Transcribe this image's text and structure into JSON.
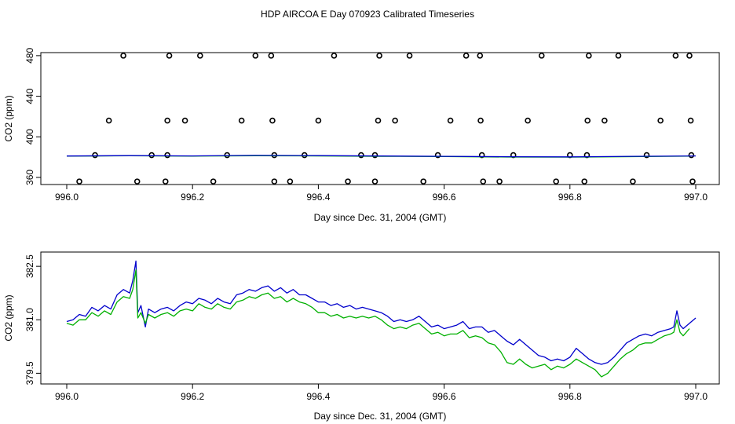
{
  "title": "HDP AIRCOA E  Day 070923  Calibrated Timeseries",
  "chart_data": [
    {
      "type": "scatter",
      "xlabel": "Day since Dec. 31, 2004 (GMT)",
      "ylabel": "CO2 (ppm)",
      "xlim": [
        995.995,
        997.005
      ],
      "ylim": [
        353,
        483
      ],
      "xticks": [
        "996.0",
        "996.2",
        "996.4",
        "996.6",
        "996.8",
        "997.0"
      ],
      "xtick_values": [
        996.0,
        996.2,
        996.4,
        996.6,
        996.8,
        997.0
      ],
      "yticks": [
        "360",
        "400",
        "440",
        "480"
      ],
      "ytick_values": [
        360,
        400,
        440,
        480
      ],
      "series": [
        {
          "name": "points",
          "color": "#000000",
          "marker": "circle",
          "x": [
            996.09,
            996.163,
            996.212,
            996.3,
            996.325,
            996.425,
            996.497,
            996.545,
            996.635,
            996.657,
            996.755,
            996.83,
            996.877,
            996.968,
            996.99,
            996.067,
            996.16,
            996.188,
            996.278,
            996.327,
            996.4,
            996.495,
            996.522,
            996.61,
            996.658,
            996.733,
            996.828,
            996.855,
            996.944,
            996.992,
            996.045,
            996.135,
            996.16,
            996.255,
            996.33,
            996.378,
            996.468,
            996.49,
            996.59,
            996.66,
            996.71,
            996.8,
            996.827,
            996.922,
            996.993,
            996.02,
            996.112,
            996.157,
            996.233,
            996.33,
            996.355,
            996.447,
            996.49,
            996.567,
            996.662,
            996.688,
            996.778,
            996.823,
            996.9,
            996.995
          ],
          "y": [
            480,
            480,
            480,
            480,
            480,
            480,
            480,
            480,
            480,
            480,
            480,
            480,
            480,
            480,
            480,
            416,
            416,
            416,
            416,
            416,
            416,
            416,
            416,
            416,
            416,
            416,
            416,
            416,
            416,
            416,
            382,
            382,
            382,
            382,
            382,
            382,
            382,
            382,
            382,
            382,
            382,
            382,
            382,
            382,
            382,
            356,
            356,
            356,
            356,
            356,
            356,
            356,
            356,
            356,
            356,
            356,
            356,
            356,
            356,
            356
          ]
        },
        {
          "name": "green",
          "color": "#00b000",
          "x": [
            996.0,
            996.1,
            996.2,
            996.3,
            996.4,
            996.5,
            996.6,
            996.7,
            996.8,
            996.9,
            996.99
          ],
          "y": [
            381.0,
            381.3,
            381.0,
            381.4,
            381.2,
            380.8,
            380.6,
            380.1,
            380.0,
            380.5,
            380.9
          ]
        },
        {
          "name": "blue",
          "color": "#0000cc",
          "x": [
            996.0,
            996.1,
            996.2,
            996.3,
            996.4,
            996.5,
            996.6,
            996.7,
            996.8,
            996.9,
            997.0
          ],
          "y": [
            381.1,
            381.5,
            381.2,
            381.7,
            381.5,
            381.1,
            380.8,
            380.4,
            380.2,
            380.8,
            381.2
          ]
        }
      ]
    },
    {
      "type": "line",
      "xlabel": "Day since Dec. 31, 2004 (GMT)",
      "ylabel": "CO2 (ppm)",
      "xlim": [
        995.995,
        997.005
      ],
      "ylim": [
        379.2,
        382.9
      ],
      "xticks": [
        "996.0",
        "996.2",
        "996.4",
        "996.6",
        "996.8",
        "997.0"
      ],
      "xtick_values": [
        996.0,
        996.2,
        996.4,
        996.6,
        996.8,
        997.0
      ],
      "yticks": [
        "379.5",
        "381.0",
        "382.5"
      ],
      "ytick_values": [
        379.5,
        381.0,
        382.5
      ],
      "series": [
        {
          "name": "blue",
          "color": "#0000cc",
          "x": [
            996.0,
            996.01,
            996.02,
            996.03,
            996.04,
            996.05,
            996.06,
            996.07,
            996.08,
            996.09,
            996.1,
            996.105,
            996.11,
            996.113,
            996.118,
            996.125,
            996.13,
            996.14,
            996.15,
            996.16,
            996.17,
            996.18,
            996.19,
            996.2,
            996.21,
            996.22,
            996.23,
            996.24,
            996.25,
            996.26,
            996.27,
            996.28,
            996.29,
            996.3,
            996.31,
            996.32,
            996.33,
            996.34,
            996.35,
            996.36,
            996.37,
            996.38,
            996.39,
            996.4,
            996.41,
            996.42,
            996.43,
            996.44,
            996.45,
            996.46,
            996.47,
            996.48,
            996.49,
            996.5,
            996.51,
            996.52,
            996.53,
            996.54,
            996.55,
            996.56,
            996.57,
            996.58,
            996.59,
            996.6,
            996.61,
            996.62,
            996.63,
            996.64,
            996.65,
            996.66,
            996.67,
            996.68,
            996.69,
            996.7,
            996.71,
            996.72,
            996.73,
            996.74,
            996.75,
            996.76,
            996.77,
            996.78,
            996.79,
            996.8,
            996.81,
            996.82,
            996.83,
            996.84,
            996.85,
            996.86,
            996.87,
            996.88,
            996.89,
            996.9,
            996.91,
            996.92,
            996.93,
            996.94,
            996.95,
            996.96,
            996.965,
            996.97,
            996.975,
            996.98,
            996.99,
            997.0
          ],
          "y": [
            380.95,
            381.0,
            381.15,
            381.1,
            381.35,
            381.25,
            381.4,
            381.3,
            381.7,
            381.85,
            381.75,
            382.1,
            382.65,
            381.2,
            381.4,
            380.8,
            381.3,
            381.2,
            381.3,
            381.35,
            381.25,
            381.4,
            381.5,
            381.45,
            381.6,
            381.55,
            381.45,
            381.6,
            381.5,
            381.45,
            381.7,
            381.75,
            381.85,
            381.8,
            381.9,
            381.95,
            381.8,
            381.9,
            381.75,
            381.85,
            381.7,
            381.7,
            381.6,
            381.5,
            381.5,
            381.4,
            381.45,
            381.35,
            381.4,
            381.3,
            381.35,
            381.3,
            381.25,
            381.2,
            381.1,
            380.95,
            381.0,
            380.95,
            381.0,
            381.1,
            380.95,
            380.8,
            380.85,
            380.75,
            380.8,
            380.85,
            380.95,
            380.75,
            380.8,
            380.8,
            380.65,
            380.7,
            380.55,
            380.4,
            380.3,
            380.45,
            380.3,
            380.15,
            380.0,
            379.95,
            379.85,
            379.9,
            379.85,
            379.95,
            380.2,
            380.05,
            379.9,
            379.8,
            379.75,
            379.8,
            379.95,
            380.15,
            380.35,
            380.45,
            380.55,
            380.6,
            380.55,
            380.65,
            380.7,
            380.75,
            380.8,
            381.25,
            380.85,
            380.75,
            380.9,
            381.05
          ]
        },
        {
          "name": "green",
          "color": "#00b000",
          "x": [
            996.0,
            996.01,
            996.02,
            996.03,
            996.04,
            996.05,
            996.06,
            996.07,
            996.08,
            996.09,
            996.1,
            996.105,
            996.11,
            996.113,
            996.118,
            996.125,
            996.13,
            996.14,
            996.15,
            996.16,
            996.17,
            996.18,
            996.19,
            996.2,
            996.21,
            996.22,
            996.23,
            996.24,
            996.25,
            996.26,
            996.27,
            996.28,
            996.29,
            996.3,
            996.31,
            996.32,
            996.33,
            996.34,
            996.35,
            996.36,
            996.37,
            996.38,
            996.39,
            996.4,
            996.41,
            996.42,
            996.43,
            996.44,
            996.45,
            996.46,
            996.47,
            996.48,
            996.49,
            996.5,
            996.51,
            996.52,
            996.53,
            996.54,
            996.55,
            996.56,
            996.57,
            996.58,
            996.59,
            996.6,
            996.61,
            996.62,
            996.63,
            996.64,
            996.65,
            996.66,
            996.67,
            996.68,
            996.69,
            996.7,
            996.71,
            996.72,
            996.73,
            996.74,
            996.75,
            996.76,
            996.77,
            996.78,
            996.79,
            996.8,
            996.81,
            996.82,
            996.83,
            996.84,
            996.85,
            996.86,
            996.87,
            996.88,
            996.89,
            996.9,
            996.91,
            996.92,
            996.93,
            996.94,
            996.95,
            996.96,
            996.965,
            996.97,
            996.975,
            996.98,
            996.99
          ],
          "y": [
            380.9,
            380.85,
            381.0,
            381.0,
            381.2,
            381.1,
            381.25,
            381.15,
            381.5,
            381.65,
            381.6,
            381.85,
            382.4,
            381.05,
            381.2,
            380.9,
            381.15,
            381.05,
            381.15,
            381.2,
            381.1,
            381.25,
            381.3,
            381.25,
            381.45,
            381.35,
            381.3,
            381.45,
            381.35,
            381.3,
            381.5,
            381.55,
            381.65,
            381.6,
            381.7,
            381.75,
            381.6,
            381.65,
            381.5,
            381.6,
            381.5,
            381.45,
            381.35,
            381.2,
            381.2,
            381.1,
            381.15,
            381.05,
            381.1,
            381.05,
            381.1,
            381.05,
            381.1,
            381.0,
            380.85,
            380.75,
            380.8,
            380.75,
            380.85,
            380.9,
            380.75,
            380.6,
            380.65,
            380.55,
            380.6,
            380.6,
            380.7,
            380.5,
            380.55,
            380.5,
            380.35,
            380.3,
            380.1,
            379.8,
            379.75,
            379.9,
            379.75,
            379.65,
            379.7,
            379.75,
            379.6,
            379.7,
            379.65,
            379.75,
            379.9,
            379.8,
            379.7,
            379.6,
            379.4,
            379.5,
            379.7,
            379.9,
            380.05,
            380.15,
            380.3,
            380.35,
            380.35,
            380.45,
            380.55,
            380.6,
            380.65,
            381.0,
            380.65,
            380.55,
            380.75
          ]
        }
      ]
    }
  ]
}
